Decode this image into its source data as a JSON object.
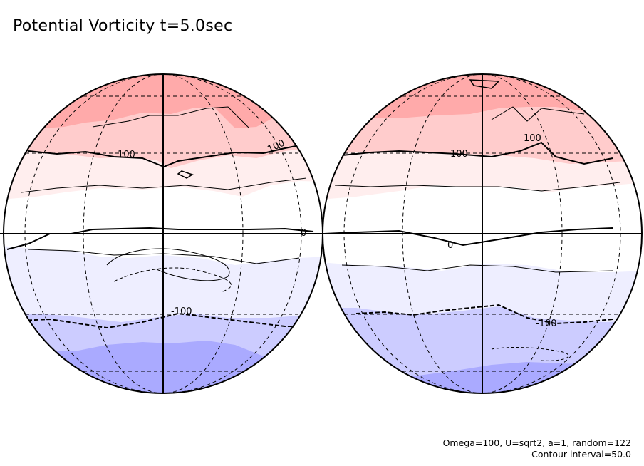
{
  "title": "Potential Vorticity t=5.0sec",
  "params": {
    "line1": "Omega=100, U=sqrt2, a=1, random=122",
    "line2": "Contour interval=50.0"
  },
  "colors": {
    "band_n3": "#ffaaaa",
    "band_n2": "#ffcccc",
    "band_n1": "#ffeeee",
    "band_0": "#ffffff",
    "band_s1": "#eeeeff",
    "band_s2": "#ccccff",
    "band_s3": "#aaaaff"
  },
  "globes": [
    {
      "name": "left",
      "contour_labels": [
        {
          "text": "100"
        },
        {
          "text": "100"
        },
        {
          "text": "0"
        },
        {
          "text": "-100"
        }
      ]
    },
    {
      "name": "right",
      "contour_labels": [
        {
          "text": "100"
        },
        {
          "text": "100"
        },
        {
          "text": "0"
        },
        {
          "text": "-100"
        }
      ]
    }
  ]
}
